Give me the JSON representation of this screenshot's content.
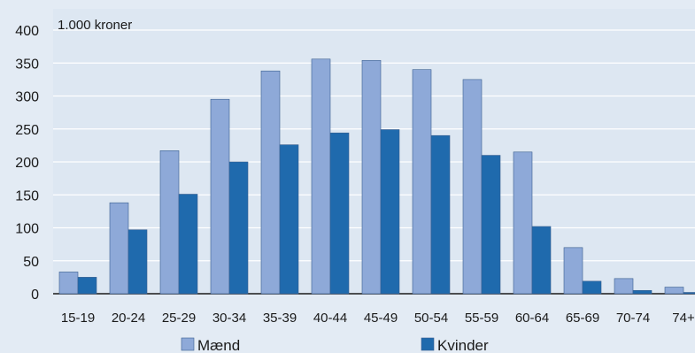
{
  "chart_data": {
    "type": "bar",
    "title": "",
    "unit_label": "1.000 kroner",
    "xlabel": "",
    "ylabel": "",
    "categories": [
      "15-19",
      "20-24",
      "25-29",
      "30-34",
      "35-39",
      "40-44",
      "45-49",
      "50-54",
      "55-59",
      "60-64",
      "65-69",
      "70-74",
      "74+"
    ],
    "series": [
      {
        "name": "Mænd",
        "color": "#8ea9d8",
        "values": [
          33,
          138,
          217,
          295,
          338,
          356,
          354,
          340,
          325,
          215,
          70,
          23,
          10
        ]
      },
      {
        "name": "Kvinder",
        "color": "#1f6aad",
        "values": [
          25,
          97,
          151,
          200,
          226,
          244,
          249,
          240,
          210,
          102,
          19,
          5,
          2
        ]
      }
    ],
    "ylim": [
      0,
      400
    ],
    "yticks": [
      0,
      50,
      100,
      150,
      200,
      250,
      300,
      350,
      400
    ],
    "grid": true,
    "legend_position": "bottom"
  }
}
